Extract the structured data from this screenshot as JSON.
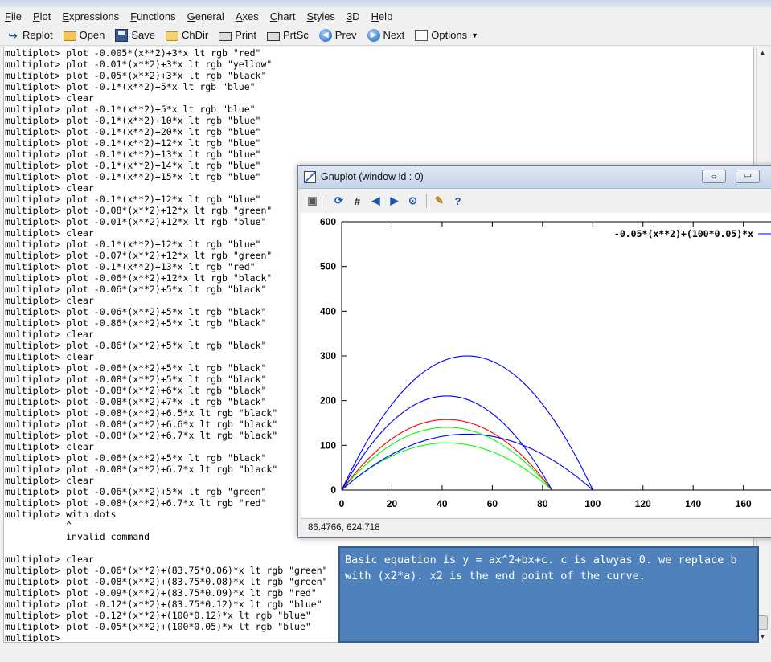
{
  "menu": [
    {
      "key": "F",
      "rest": "ile"
    },
    {
      "key": "P",
      "rest": "lot"
    },
    {
      "key": "E",
      "rest": "xpressions"
    },
    {
      "key": "F",
      "rest": "unctions"
    },
    {
      "key": "G",
      "rest": "eneral"
    },
    {
      "key": "A",
      "rest": "xes"
    },
    {
      "key": "C",
      "rest": "hart"
    },
    {
      "key": "S",
      "rest": "tyles"
    },
    {
      "key": "3",
      "rest": "D"
    },
    {
      "key": "H",
      "rest": "elp"
    }
  ],
  "toolbar": {
    "replot": "Replot",
    "open": "Open",
    "save": "Save",
    "chdir": "ChDir",
    "print": "Print",
    "prtsc": "PrtSc",
    "prev": "Prev",
    "next": "Next",
    "options": "Options"
  },
  "console_lines": [
    "multiplot> plot -0.005*(x**2)+3*x lt rgb \"red\"",
    "multiplot> plot -0.01*(x**2)+3*x lt rgb \"yellow\"",
    "multiplot> plot -0.05*(x**2)+3*x lt rgb \"black\"",
    "multiplot> plot -0.1*(x**2)+5*x lt rgb \"blue\"",
    "multiplot> clear",
    "multiplot> plot -0.1*(x**2)+5*x lt rgb \"blue\"",
    "multiplot> plot -0.1*(x**2)+10*x lt rgb \"blue\"",
    "multiplot> plot -0.1*(x**2)+20*x lt rgb \"blue\"",
    "multiplot> plot -0.1*(x**2)+12*x lt rgb \"blue\"",
    "multiplot> plot -0.1*(x**2)+13*x lt rgb \"blue\"",
    "multiplot> plot -0.1*(x**2)+14*x lt rgb \"blue\"",
    "multiplot> plot -0.1*(x**2)+15*x lt rgb \"blue\"",
    "multiplot> clear",
    "multiplot> plot -0.1*(x**2)+12*x lt rgb \"blue\"",
    "multiplot> plot -0.08*(x**2)+12*x lt rgb \"green\"",
    "multiplot> plot -0.01*(x**2)+12*x lt rgb \"blue\"",
    "multiplot> clear",
    "multiplot> plot -0.1*(x**2)+12*x lt rgb \"blue\"",
    "multiplot> plot -0.07*(x**2)+12*x lt rgb \"green\"",
    "multiplot> plot -0.1*(x**2)+13*x lt rgb \"red\"",
    "multiplot> plot -0.06*(x**2)+12*x lt rgb \"black\"",
    "multiplot> plot -0.06*(x**2)+5*x lt rgb \"black\"",
    "multiplot> clear",
    "multiplot> plot -0.06*(x**2)+5*x lt rgb \"black\"",
    "multiplot> plot -0.86*(x**2)+5*x lt rgb \"black\"",
    "multiplot> clear",
    "multiplot> plot -0.86*(x**2)+5*x lt rgb \"black\"",
    "multiplot> clear",
    "multiplot> plot -0.06*(x**2)+5*x lt rgb \"black\"",
    "multiplot> plot -0.08*(x**2)+5*x lt rgb \"black\"",
    "multiplot> plot -0.08*(x**2)+6*x lt rgb \"black\"",
    "multiplot> plot -0.08*(x**2)+7*x lt rgb \"black\"",
    "multiplot> plot -0.08*(x**2)+6.5*x lt rgb \"black\"",
    "multiplot> plot -0.08*(x**2)+6.6*x lt rgb \"black\"",
    "multiplot> plot -0.08*(x**2)+6.7*x lt rgb \"black\"",
    "multiplot> clear",
    "multiplot> plot -0.06*(x**2)+5*x lt rgb \"black\"",
    "multiplot> plot -0.08*(x**2)+6.7*x lt rgb \"black\"",
    "multiplot> clear",
    "multiplot> plot -0.06*(x**2)+5*x lt rgb \"green\"",
    "multiplot> plot -0.08*(x**2)+6.7*x lt rgb \"red\"",
    "multiplot> with dots",
    "           ^",
    "           invalid command",
    "",
    "multiplot> clear",
    "multiplot> plot -0.06*(x**2)+(83.75*0.06)*x lt rgb \"green\"",
    "multiplot> plot -0.08*(x**2)+(83.75*0.08)*x lt rgb \"green\"",
    "multiplot> plot -0.09*(x**2)+(83.75*0.09)*x lt rgb \"red\"",
    "multiplot> plot -0.12*(x**2)+(83.75*0.12)*x lt rgb \"blue\"",
    "multiplot> plot -0.12*(x**2)+(100*0.12)*x lt rgb \"blue\"",
    "multiplot> plot -0.05*(x**2)+(100*0.05)*x lt rgb \"blue\"",
    "multiplot>"
  ],
  "gnuplot_window": {
    "title": "Gnuplot (window id : 0)",
    "restore_glyph": "⇔",
    "minimize_glyph": "▭",
    "status": "86.4766,  624.718"
  },
  "note": {
    "text": "Basic equation is y = ax^2+bx+c. c is alwyas 0. we replace b with (x2*a). x2 is the end point of the curve."
  },
  "chart_data": {
    "type": "line",
    "xlim": [
      0,
      170
    ],
    "ylim": [
      0,
      600
    ],
    "x_ticks": [
      "0",
      "20",
      "40",
      "60",
      "80",
      "100",
      "120",
      "140",
      "160"
    ],
    "y_ticks": [
      "0",
      "100",
      "200",
      "300",
      "400",
      "500",
      "600"
    ],
    "legend_text": "-0.05*(x**2)+(100*0.05)*x",
    "legend_position": "top-right",
    "series": [
      {
        "a": 0.06,
        "end": 83.75,
        "color": "#00ff00"
      },
      {
        "a": 0.08,
        "end": 83.75,
        "color": "#00ff00"
      },
      {
        "a": 0.09,
        "end": 83.75,
        "color": "#ff0000"
      },
      {
        "a": 0.12,
        "end": 83.75,
        "color": "#0000ff"
      },
      {
        "a": 0.12,
        "end": 100,
        "color": "#0000ff"
      },
      {
        "a": 0.05,
        "end": 100,
        "color": "#0000ff"
      }
    ]
  }
}
